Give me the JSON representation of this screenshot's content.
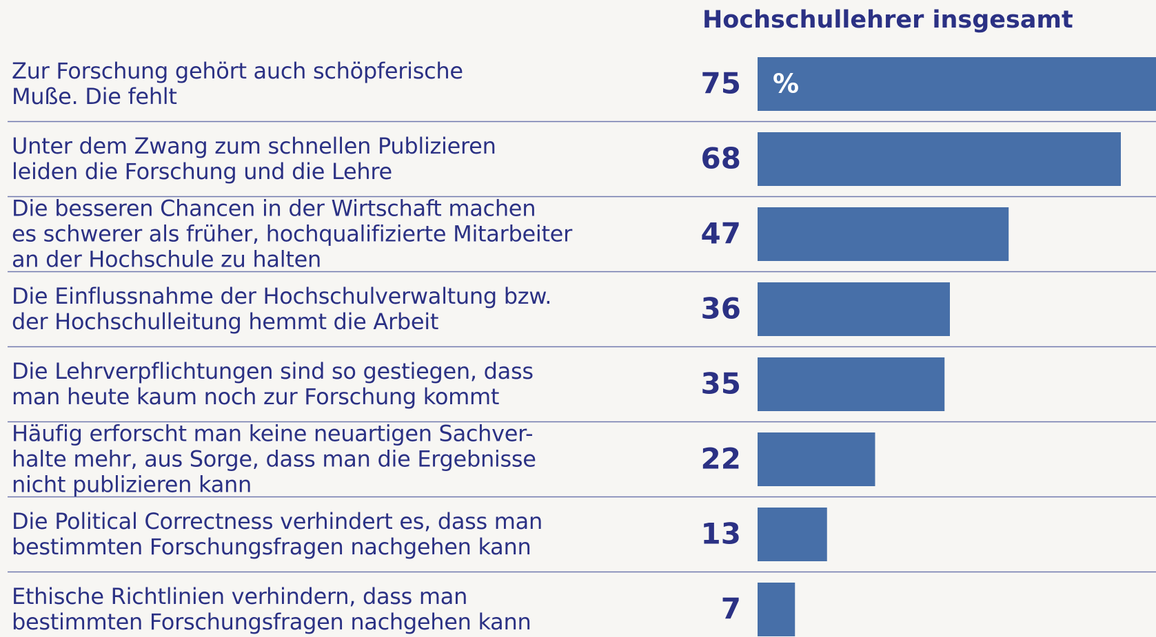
{
  "chart_data": {
    "type": "bar",
    "orientation": "horizontal",
    "title": "Hochschullehrer insgesamt",
    "unit_label": "%",
    "categories": [
      "Zur Forschung gehört auch schöpferische\nMuße. Die fehlt",
      "Unter dem Zwang zum schnellen Publizieren\nleiden die Forschung und die Lehre",
      "Die besseren Chancen in der Wirtschaft machen\nes schwerer als früher, hochqualifizierte Mitarbeiter\nan der Hochschule zu halten",
      "Die Einflussnahme der Hochschulverwaltung bzw.\nder Hochschulleitung hemmt die Arbeit",
      "Die Lehrverpflichtungen sind so gestiegen, dass\nman heute kaum noch zur Forschung kommt",
      "Häufig erforscht man keine neuartigen Sachver-\nhalte mehr, aus Sorge, dass man die Ergebnisse\nnicht publizieren kann",
      "Die Political Correctness verhindert es, dass man\nbestimmten Forschungsfragen nachgehen kann",
      "Ethische Richtlinien verhindern, dass man\nbestimmten Forschungsfragen nachgehen kann"
    ],
    "values": [
      75,
      68,
      47,
      36,
      35,
      22,
      13,
      7
    ],
    "color": "#476fa8"
  }
}
